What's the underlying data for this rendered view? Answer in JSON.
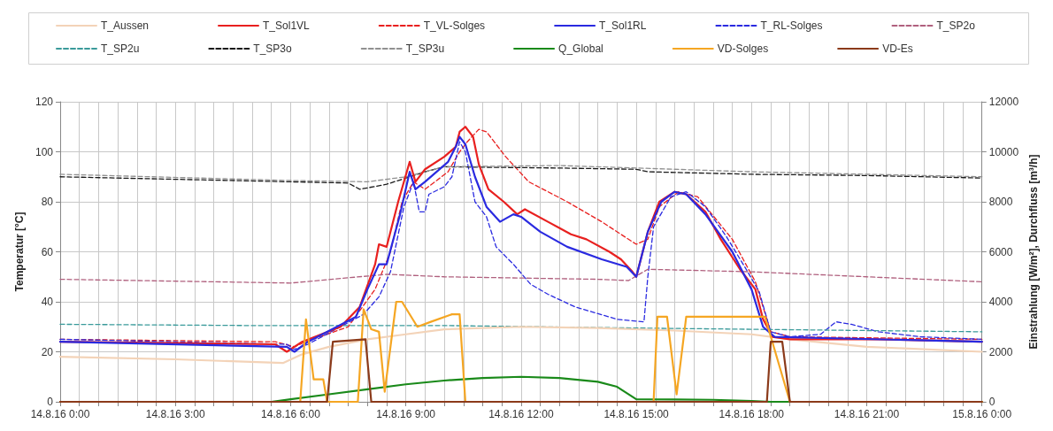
{
  "chart_data": {
    "type": "line",
    "ylabel": "Temperatur [°C]",
    "y2label": "Einstrahlung [W/m²], Durchfluss [m³/h]",
    "xlim": [
      "--08-14T00:00",
      "--08-15T00:00"
    ],
    "xticks": [
      {
        "value": "--08-14T00:00",
        "label": "14.8.16 0:00"
      },
      {
        "value": "--08-14T00:30",
        "label": null
      },
      {
        "value": "--08-14T01:00",
        "label": null
      },
      {
        "value": "--08-14T01:30",
        "label": null
      },
      {
        "value": "--08-14T02:00",
        "label": null
      },
      {
        "value": "--08-14T02:30",
        "label": null
      },
      {
        "value": "--08-14T03:00",
        "label": "14.8.16 3:00"
      },
      {
        "value": "--08-14T03:30",
        "label": null
      },
      {
        "value": "--08-14T04:00",
        "label": null
      },
      {
        "value": "--08-14T04:30",
        "label": null
      },
      {
        "value": "--08-14T05:00",
        "label": null
      },
      {
        "value": "--08-14T05:30",
        "label": null
      },
      {
        "value": "--08-14T06:00",
        "label": "14.8.16 6:00"
      },
      {
        "value": "--08-14T06:30",
        "label": null
      },
      {
        "value": "--08-14T07:00",
        "label": null
      },
      {
        "value": "--08-14T07:30",
        "label": null
      },
      {
        "value": "--08-14T08:00",
        "label": null
      },
      {
        "value": "--08-14T08:30",
        "label": null
      },
      {
        "value": "--08-14T09:00",
        "label": "14.8.16 9:00"
      },
      {
        "value": "--08-14T09:30",
        "label": null
      },
      {
        "value": "--08-14T10:00",
        "label": null
      },
      {
        "value": "--08-14T10:30",
        "label": null
      },
      {
        "value": "--08-14T11:00",
        "label": null
      },
      {
        "value": "--08-14T11:30",
        "label": null
      },
      {
        "value": "--08-14T12:00",
        "label": "14.8.16 12:00"
      },
      {
        "value": "--08-14T12:30",
        "label": null
      },
      {
        "value": "--08-14T13:00",
        "label": null
      },
      {
        "value": "--08-14T13:30",
        "label": null
      },
      {
        "value": "--08-14T14:00",
        "label": null
      },
      {
        "value": "--08-14T14:30",
        "label": null
      },
      {
        "value": "--08-14T15:00",
        "label": "14.8.16 15:00"
      },
      {
        "value": "--08-14T15:30",
        "label": null
      },
      {
        "value": "--08-14T16:00",
        "label": null
      },
      {
        "value": "--08-14T16:30",
        "label": null
      },
      {
        "value": "--08-14T17:00",
        "label": null
      },
      {
        "value": "--08-14T17:30",
        "label": null
      },
      {
        "value": "--08-14T18:00",
        "label": "14.8.16 18:00"
      },
      {
        "value": "--08-14T18:30",
        "label": null
      },
      {
        "value": "--08-14T19:00",
        "label": null
      },
      {
        "value": "--08-14T19:30",
        "label": null
      },
      {
        "value": "--08-14T20:00",
        "label": null
      },
      {
        "value": "--08-14T20:30",
        "label": null
      },
      {
        "value": "--08-14T21:00",
        "label": "14.8.16 21:00"
      },
      {
        "value": "--08-14T21:30",
        "label": null
      },
      {
        "value": "--08-14T22:00",
        "label": null
      },
      {
        "value": "--08-14T22:30",
        "label": null
      },
      {
        "value": "--08-14T23:00",
        "label": null
      },
      {
        "value": "--08-14T23:30",
        "label": null
      },
      {
        "value": "--08-15T00:00",
        "label": "15.8.16 0:00"
      }
    ],
    "ylim": [
      0,
      120
    ],
    "yticks": [
      0,
      20,
      40,
      60,
      80,
      100,
      120
    ],
    "y2lim": [
      0,
      12000
    ],
    "y2ticks": [
      0,
      2000,
      4000,
      6000,
      8000,
      10000,
      12000
    ],
    "grid": true,
    "legend": "top",
    "marker": "none",
    "series": [
      {
        "name": "T_Aussen",
        "color": "#f3d3b8",
        "line_style": "solid",
        "x": [
          "--08-14T00:00",
          "--08-14T03:00",
          "--08-14T05:48",
          "--08-14T06:18",
          "--08-14T07:00",
          "--08-14T08:00",
          "--08-14T09:00",
          "--08-14T10:00",
          "--08-14T12:00",
          "--08-14T14:00",
          "--08-14T16:00",
          "--08-14T18:00",
          "--08-14T19:00",
          "--08-14T21:00",
          "--08-15T00:00"
        ],
        "values": [
          18,
          17,
          15.5,
          19,
          22,
          25,
          27,
          29,
          30,
          29.5,
          28.5,
          27,
          25,
          22,
          20
        ]
      },
      {
        "name": "T_Sol1VL",
        "color": "#e8201f",
        "line_style": "solid",
        "x": [
          "--08-14T00:00",
          "--08-14T05:36",
          "--08-14T05:54",
          "--08-14T06:18",
          "--08-14T07:18",
          "--08-14T07:48",
          "--08-14T08:12",
          "--08-14T08:18",
          "--08-14T08:30",
          "--08-14T08:48",
          "--08-14T09:06",
          "--08-14T09:15",
          "--08-14T09:30",
          "--08-14T10:00",
          "--08-14T10:18",
          "--08-14T10:24",
          "--08-14T10:33",
          "--08-14T10:45",
          "--08-14T10:54",
          "--08-14T11:09",
          "--08-14T11:33",
          "--08-14T11:54",
          "--08-14T12:06",
          "--08-14T12:42",
          "--08-14T13:18",
          "--08-14T13:42",
          "--08-14T14:18",
          "--08-14T14:36",
          "--08-14T14:54",
          "--08-14T15:00",
          "--08-14T15:18",
          "--08-14T15:36",
          "--08-14T16:00",
          "--08-14T16:18",
          "--08-14T16:48",
          "--08-14T17:12",
          "--08-14T17:42",
          "--08-14T18:06",
          "--08-14T18:18",
          "--08-14T18:33",
          "--08-14T19:00",
          "--08-14T21:18",
          "--08-15T00:00"
        ],
        "values": [
          24,
          23,
          20,
          24,
          30,
          38,
          55,
          63,
          62,
          80,
          96,
          88,
          93,
          98,
          102,
          108,
          110,
          106,
          95,
          85,
          80,
          75,
          77,
          72,
          67,
          65,
          60,
          57,
          52,
          50,
          68,
          80,
          84,
          83,
          76,
          65,
          53,
          45,
          33,
          26,
          25,
          25,
          24
        ]
      },
      {
        "name": "T_VL-Solges",
        "color": "#e8201f",
        "line_style": "dashed",
        "x": [
          "--08-14T00:00",
          "--08-14T05:36",
          "--08-14T06:06",
          "--08-14T06:24",
          "--08-14T07:30",
          "--08-14T08:12",
          "--08-14T08:36",
          "--08-14T08:54",
          "--08-14T09:12",
          "--08-14T09:30",
          "--08-14T10:06",
          "--08-14T10:24",
          "--08-14T10:36",
          "--08-14T10:54",
          "--08-14T11:06",
          "--08-14T11:36",
          "--08-14T12:12",
          "--08-14T13:12",
          "--08-14T14:06",
          "--08-14T15:00",
          "--08-14T15:18",
          "--08-14T15:36",
          "--08-14T16:06",
          "--08-14T16:36",
          "--08-14T17:30",
          "--08-14T18:06",
          "--08-14T18:30",
          "--08-14T19:00",
          "--08-15T00:00"
        ],
        "values": [
          25,
          24,
          22,
          24,
          30,
          45,
          60,
          80,
          88,
          85,
          92,
          100,
          104,
          109,
          108,
          98,
          88,
          80,
          72,
          63,
          65,
          78,
          84,
          82,
          65,
          48,
          28,
          26,
          25
        ]
      },
      {
        "name": "T_Sol1RL",
        "color": "#2a2ae0",
        "line_style": "solid",
        "x": [
          "--08-14T00:00",
          "--08-14T05:54",
          "--08-14T06:06",
          "--08-14T06:27",
          "--08-14T07:42",
          "--08-14T08:00",
          "--08-14T08:18",
          "--08-14T08:30",
          "--08-14T08:51",
          "--08-14T09:06",
          "--08-14T09:15",
          "--08-14T09:30",
          "--08-14T10:06",
          "--08-14T10:18",
          "--08-14T10:24",
          "--08-14T10:33",
          "--08-14T10:48",
          "--08-14T11:06",
          "--08-14T11:27",
          "--08-14T11:48",
          "--08-14T12:00",
          "--08-14T12:30",
          "--08-14T13:12",
          "--08-14T14:06",
          "--08-14T14:45",
          "--08-14T15:00",
          "--08-14T15:18",
          "--08-14T15:39",
          "--08-14T16:00",
          "--08-14T16:18",
          "--08-14T16:48",
          "--08-14T17:30",
          "--08-14T18:00",
          "--08-14T18:18",
          "--08-14T18:36",
          "--08-15T00:00"
        ],
        "values": [
          24,
          22,
          20,
          24,
          34,
          45,
          55,
          55,
          75,
          92,
          85,
          88,
          96,
          102,
          106,
          103,
          90,
          78,
          72,
          75,
          74,
          68,
          62,
          57,
          54,
          50,
          68,
          80,
          84,
          83,
          75,
          60,
          45,
          30,
          26,
          24
        ]
      },
      {
        "name": "T_RL-Solges",
        "color": "#2a2ae0",
        "line_style": "dashed",
        "x": [
          "--08-14T00:00",
          "--08-14T05:54",
          "--08-14T06:06",
          "--08-14T06:27",
          "--08-14T07:54",
          "--08-14T08:18",
          "--08-14T08:36",
          "--08-14T08:57",
          "--08-14T09:12",
          "--08-14T09:21",
          "--08-14T09:30",
          "--08-14T09:36",
          "--08-14T10:00",
          "--08-14T10:12",
          "--08-14T10:24",
          "--08-14T10:33",
          "--08-14T10:48",
          "--08-14T11:06",
          "--08-14T11:21",
          "--08-14T11:48",
          "--08-14T12:15",
          "--08-14T12:42",
          "--08-14T13:24",
          "--08-14T14:30",
          "--08-14T15:12",
          "--08-14T15:18",
          "--08-14T15:27",
          "--08-14T15:54",
          "--08-14T16:18",
          "--08-14T16:48",
          "--08-14T17:21",
          "--08-14T17:54",
          "--08-14T18:12",
          "--08-14T18:30",
          "--08-14T19:00",
          "--08-14T19:48",
          "--08-14T20:12",
          "--08-14T20:36",
          "--08-14T21:18",
          "--08-14T22:24",
          "--08-15T00:00"
        ],
        "values": [
          25,
          23,
          21,
          23,
          35,
          42,
          52,
          78,
          88,
          76,
          76,
          83,
          86,
          90,
          104,
          100,
          80,
          74,
          62,
          55,
          47,
          43,
          38,
          33,
          32,
          50,
          70,
          82,
          84,
          78,
          66,
          52,
          44,
          28,
          26,
          27,
          32,
          31,
          28,
          26,
          25
        ]
      },
      {
        "name": "T_SP2o",
        "color": "#b0607e",
        "line_style": "dashed",
        "x": [
          "--08-14T00:00",
          "--08-14T06:00",
          "--08-14T08:30",
          "--08-14T10:00",
          "--08-14T14:00",
          "--08-14T14:48",
          "--08-14T15:18",
          "--08-14T18:00",
          "--08-14T21:00",
          "--08-15T00:00"
        ],
        "values": [
          49,
          47.5,
          51,
          50,
          49,
          48.5,
          53,
          52,
          50,
          48
        ]
      },
      {
        "name": "T_SP2u",
        "color": "#3a9a9a",
        "line_style": "dashed",
        "x": [
          "--08-14T00:00",
          "--08-14T05:00",
          "--08-14T10:00",
          "--08-14T15:00",
          "--08-14T18:00",
          "--08-15T00:00"
        ],
        "values": [
          31,
          30.5,
          30.5,
          29.5,
          29,
          28
        ]
      },
      {
        "name": "T_SP3o",
        "color": "#1a1a1a",
        "line_style": "dashed",
        "x": [
          "--08-14T00:00",
          "--08-14T06:00",
          "--08-14T07:30",
          "--08-14T07:48",
          "--08-14T08:30",
          "--08-14T09:30",
          "--08-14T10:00",
          "--08-14T13:00",
          "--08-14T15:00",
          "--08-14T15:18",
          "--08-14T18:00",
          "--08-14T21:00",
          "--08-15T00:00"
        ],
        "values": [
          90,
          88,
          87.5,
          85,
          87,
          92,
          94,
          93.5,
          93,
          92,
          91,
          90.5,
          89.5
        ]
      },
      {
        "name": "T_SP3u",
        "color": "#909090",
        "line_style": "dashed",
        "x": [
          "--08-14T00:00",
          "--08-14T06:00",
          "--08-14T08:00",
          "--08-14T09:00",
          "--08-14T10:00",
          "--08-14T13:00",
          "--08-14T15:00",
          "--08-14T18:00",
          "--08-15T00:00"
        ],
        "values": [
          91,
          88.5,
          88,
          90,
          94,
          94.5,
          93.5,
          92,
          90
        ]
      },
      {
        "name": "Q_Global",
        "color": "#1a8a1a",
        "line_style": "solid",
        "axis": "y2",
        "x": [
          "--08-14T00:00",
          "--08-14T05:30",
          "--08-14T06:00",
          "--08-14T07:00",
          "--08-14T08:00",
          "--08-14T09:00",
          "--08-14T10:00",
          "--08-14T11:00",
          "--08-14T12:00",
          "--08-14T13:00",
          "--08-14T14:00",
          "--08-14T14:30",
          "--08-14T15:00",
          "--08-14T17:00",
          "--08-14T18:00",
          "--08-14T18:30",
          "--08-15T00:00"
        ],
        "values": [
          0,
          0,
          100,
          300,
          500,
          700,
          850,
          950,
          1000,
          950,
          800,
          600,
          100,
          80,
          30,
          0,
          0
        ]
      },
      {
        "name": "VD-Solges",
        "color": "#f5a623",
        "line_style": "solid",
        "axis": "y2",
        "x": [
          "--08-14T00:00",
          "--08-14T06:15",
          "--08-14T06:24",
          "--08-14T06:36",
          "--08-14T06:51",
          "--08-14T06:57",
          "--08-14T07:45",
          "--08-14T07:54",
          "--08-14T08:06",
          "--08-14T08:18",
          "--08-14T08:27",
          "--08-14T08:45",
          "--08-14T08:54",
          "--08-14T09:18",
          "--08-14T09:39",
          "--08-14T10:12",
          "--08-14T10:24",
          "--08-14T10:33",
          "--08-14T15:27",
          "--08-14T15:33",
          "--08-14T15:48",
          "--08-14T16:03",
          "--08-14T16:18",
          "--08-14T18:21",
          "--08-14T19:00",
          "--08-15T00:00"
        ],
        "values": [
          0,
          0,
          3300,
          900,
          900,
          0,
          0,
          3700,
          2900,
          2800,
          400,
          4000,
          4000,
          3000,
          3200,
          3500,
          3500,
          0,
          0,
          3400,
          3400,
          300,
          3400,
          3400,
          0,
          0
        ]
      },
      {
        "name": "VD-Es",
        "color": "#8b3a1a",
        "line_style": "solid",
        "axis": "y2",
        "x": [
          "--08-14T00:00",
          "--08-14T06:57",
          "--08-14T07:06",
          "--08-14T07:57",
          "--08-14T08:06",
          "--08-14T18:24",
          "--08-14T18:30",
          "--08-14T18:48",
          "--08-14T19:00",
          "--08-15T00:00"
        ],
        "values": [
          0,
          0,
          2400,
          2500,
          0,
          0,
          2400,
          2400,
          0,
          0
        ]
      }
    ]
  }
}
